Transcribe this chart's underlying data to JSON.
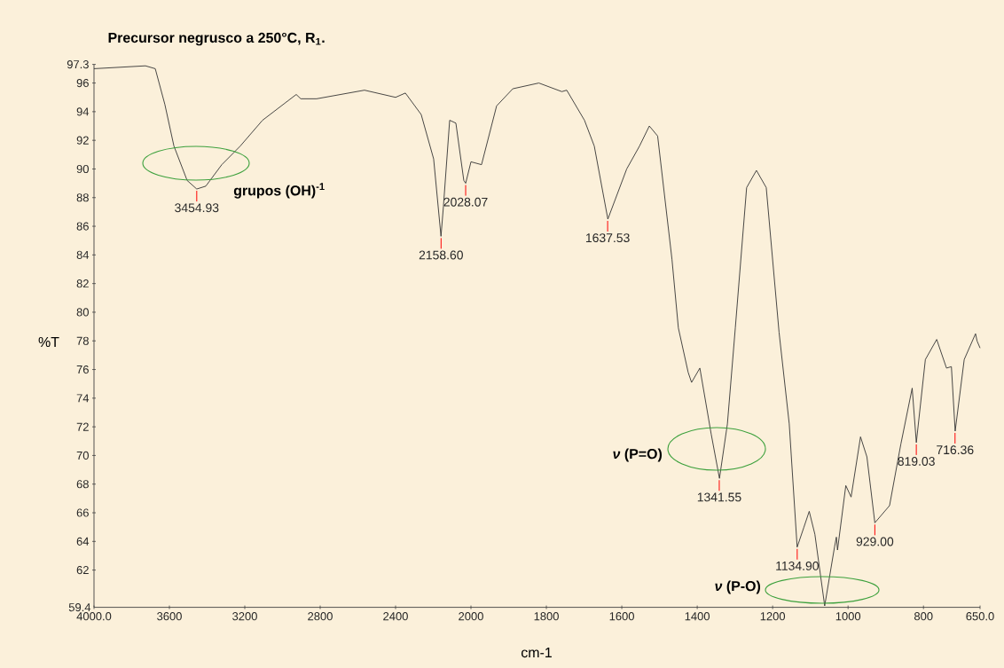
{
  "chart_data": [
    {
      "type": "line",
      "title": "Precursor negrusco a 250°C, R$_{1}$.",
      "ylabel": "%T",
      "x": [
        4000,
        3727,
        3675,
        3624,
        3576,
        3506,
        3455,
        3407,
        3322,
        3224,
        3106,
        2927,
        2903,
        2819,
        2565,
        2400,
        2348,
        2264,
        2198,
        2159,
        2146,
        2113,
        2080,
        2038,
        2028,
        2000
      ],
      "series": [
        {
          "color": "#333333",
          "values": [
            97.0,
            97.2,
            97.0,
            94.5,
            91.6,
            89.2,
            88.6,
            88.8,
            90.3,
            91.6,
            93.4,
            95.2,
            94.9,
            94.9,
            95.5,
            95.0,
            95.3,
            93.8,
            90.7,
            85.3,
            87.4,
            93.4,
            93.2,
            89.2,
            89.0,
            90.5
          ]
        }
      ],
      "xlim": [
        4000,
        2000
      ],
      "ylim": [
        59.4,
        97.3
      ],
      "xticks": [
        {
          "value": 4000,
          "label": "4000.0"
        },
        3600,
        3200,
        2800,
        2400,
        2000
      ],
      "yticks": [
        59.4,
        62,
        64,
        66,
        68,
        70,
        72,
        74,
        76,
        78,
        80,
        82,
        84,
        86,
        88,
        90,
        92,
        94,
        96,
        97.3
      ],
      "annotations": [
        {
          "text": "3454.93",
          "x": 3454.93,
          "y": 88.6
        },
        {
          "text": "2158.60",
          "x": 2158.6,
          "y": 85.3
        },
        {
          "text": "2028.07",
          "x": 2028.07,
          "y": 89.0
        },
        "grupos (OH)$^{-1}$"
      ]
    },
    {
      "type": "line",
      "xlabel": "cm-1",
      "tick_labels": "x",
      "x": [
        2000,
        1972,
        1932,
        1889,
        1820,
        1759,
        1746,
        1699,
        1673,
        1637,
        1587,
        1553,
        1527,
        1505,
        1467,
        1450,
        1424,
        1415,
        1393,
        1363,
        1341,
        1320,
        1299,
        1269,
        1243,
        1217,
        1183,
        1156,
        1135,
        1117,
        1103,
        1088,
        1062,
        1036,
        1031,
        1028,
        1006,
        992,
        967,
        950,
        929,
        890,
        860,
        830,
        819,
        795,
        765,
        739,
        726,
        716,
        692,
        662,
        658,
        650
      ],
      "series": [
        {
          "color": "#333333",
          "values": [
            90.5,
            90.3,
            94.4,
            95.6,
            96.0,
            95.4,
            95.5,
            93.4,
            91.6,
            86.5,
            90.0,
            91.6,
            93.0,
            92.3,
            83.7,
            78.9,
            75.8,
            75.1,
            76.1,
            71.5,
            68.4,
            72.2,
            78.9,
            88.7,
            89.9,
            88.7,
            78.6,
            72.2,
            63.6,
            65.0,
            66.1,
            64.5,
            59.5,
            63.6,
            64.3,
            63.4,
            67.9,
            67.1,
            71.3,
            69.9,
            65.3,
            66.5,
            70.8,
            74.7,
            70.9,
            76.7,
            78.1,
            76.1,
            76.2,
            71.7,
            76.7,
            78.5,
            78.0,
            77.5
          ]
        }
      ],
      "xlim": [
        2000,
        650
      ],
      "ylim": [
        59.4,
        97.3
      ],
      "xticks": [
        1800,
        1600,
        1400,
        1200,
        1000,
        800,
        {
          "value": 650,
          "label": "650.0"
        }
      ],
      "annotations": [
        {
          "text": "1637.53",
          "x": 1637.53,
          "y": 86.5
        },
        {
          "text": "1341.55",
          "x": 1341.55,
          "y": 68.4
        },
        {
          "text": "1134.90",
          "x": 1134.9,
          "y": 63.6
        },
        {
          "text": "929.00",
          "x": 929.0,
          "y": 65.3
        },
        {
          "text": "819.03",
          "x": 819.03,
          "y": 70.9
        },
        {
          "text": "716.36",
          "x": 716.36,
          "y": 71.7
        },
        "*ν* (P=O)",
        "*ν* (P-O)"
      ]
    }
  ]
}
